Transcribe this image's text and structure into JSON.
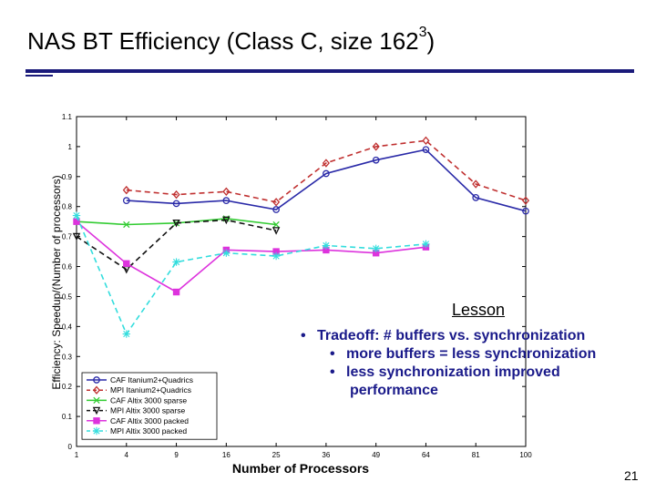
{
  "slide": {
    "title_main": "NAS BT Efficiency (Class C, size 162",
    "title_sup": "3",
    "title_close": ")",
    "lesson_heading": "Lesson",
    "bullets": [
      "Tradeoff: # buffers vs. synchronization",
      "more buffers = less synchronization",
      "less synchronization improved",
      "performance"
    ],
    "page_number": "21"
  },
  "colors": {
    "accent_rule": "#1a1a7a",
    "bullet_text": "#1a1a8a"
  },
  "chart_data": {
    "type": "line",
    "xlabel": "Number of Processors",
    "ylabel": "Efficiency: Speedup/(Number of processors)",
    "categories": [
      "1",
      "4",
      "9",
      "16",
      "25",
      "36",
      "49",
      "64",
      "81",
      "100"
    ],
    "ylim": [
      0,
      1.1
    ],
    "yticks": [
      0,
      0.1,
      0.2,
      0.3,
      0.4,
      0.5,
      0.6,
      0.7,
      0.8,
      0.9,
      1,
      1.1
    ],
    "ytick_labels": [
      "0",
      "0.1",
      "0.2",
      "0.3",
      "0.4",
      "0.5",
      "0.6",
      "0.7",
      "0.8",
      "0.9",
      "1",
      "1.1"
    ],
    "legend_position": "bottom-left",
    "series": [
      {
        "name": "CAF Itanium2+Quadrics",
        "color": "#2a2aa8",
        "dash": "solid",
        "marker": "circle",
        "values": [
          null,
          0.82,
          0.81,
          0.82,
          0.79,
          0.91,
          0.955,
          0.99,
          0.83,
          0.785
        ]
      },
      {
        "name": "MPI Itanium2+Quadrics",
        "color": "#c03030",
        "dash": "dashed",
        "marker": "diamond",
        "values": [
          null,
          0.855,
          0.84,
          0.85,
          0.815,
          0.945,
          1.0,
          1.02,
          0.875,
          0.82
        ]
      },
      {
        "name": "CAF Altix 3000 sparse",
        "color": "#33cc33",
        "dash": "solid",
        "marker": "x",
        "values": [
          0.75,
          0.74,
          0.745,
          0.76,
          0.74,
          null,
          null,
          null,
          null,
          null
        ]
      },
      {
        "name": "MPI Altix 3000 sparse",
        "color": "#111111",
        "dash": "dashed",
        "marker": "triangle",
        "values": [
          0.7,
          0.59,
          0.745,
          0.755,
          0.72,
          null,
          null,
          null,
          null,
          null
        ]
      },
      {
        "name": "CAF Altix 3000 packed",
        "color": "#dd33dd",
        "dash": "solid",
        "marker": "square",
        "values": [
          0.75,
          0.61,
          0.515,
          0.655,
          0.65,
          0.655,
          0.645,
          0.665,
          null,
          null
        ]
      },
      {
        "name": "MPI Altix 3000 packed",
        "color": "#33dddd",
        "dash": "dashed",
        "marker": "star",
        "values": [
          0.77,
          0.375,
          0.615,
          0.645,
          0.635,
          0.67,
          0.66,
          0.675,
          null,
          null
        ]
      }
    ]
  }
}
